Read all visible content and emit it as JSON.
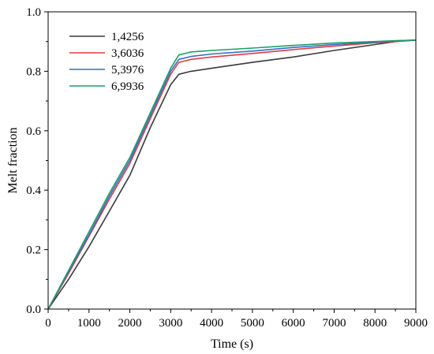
{
  "chart_data": {
    "type": "line",
    "xlabel": "Time (s)",
    "ylabel": "Melt fraction",
    "xlim": [
      0,
      9000
    ],
    "ylim": [
      0,
      1.0
    ],
    "xticks": [
      0,
      1000,
      2000,
      3000,
      4000,
      5000,
      6000,
      7000,
      8000,
      9000
    ],
    "yticks": [
      0.0,
      0.2,
      0.4,
      0.6,
      0.8,
      1.0
    ],
    "ytick_labels": [
      "0.0",
      "0.2",
      "0.4",
      "0.6",
      "0.8",
      "1.0"
    ],
    "grid": false,
    "legend_position": "top-left",
    "series": [
      {
        "name": "1,4256",
        "color": "#3a3a3a",
        "x": [
          0,
          500,
          1000,
          1500,
          2000,
          2500,
          3000,
          3200,
          3500,
          4000,
          5000,
          6000,
          7000,
          8000,
          8500,
          9000
        ],
        "y": [
          0,
          0.1,
          0.21,
          0.33,
          0.45,
          0.61,
          0.755,
          0.79,
          0.8,
          0.81,
          0.83,
          0.848,
          0.87,
          0.89,
          0.9,
          0.905
        ]
      },
      {
        "name": "3,6036",
        "color": "#e8383d",
        "x": [
          0,
          500,
          1000,
          1500,
          2000,
          2500,
          3000,
          3200,
          3500,
          4000,
          5000,
          6000,
          7000,
          8000,
          8500,
          9000
        ],
        "y": [
          0,
          0.12,
          0.245,
          0.37,
          0.49,
          0.64,
          0.79,
          0.83,
          0.84,
          0.848,
          0.86,
          0.873,
          0.885,
          0.896,
          0.9,
          0.905
        ]
      },
      {
        "name": "5,3976",
        "color": "#2f6fd0",
        "x": [
          0,
          500,
          1000,
          1500,
          2000,
          2500,
          3000,
          3200,
          3500,
          4000,
          5000,
          6000,
          7000,
          8000,
          8500,
          9000
        ],
        "y": [
          0,
          0.125,
          0.25,
          0.38,
          0.5,
          0.65,
          0.8,
          0.84,
          0.85,
          0.858,
          0.868,
          0.88,
          0.89,
          0.898,
          0.902,
          0.905
        ]
      },
      {
        "name": "6,9936",
        "color": "#1aa062",
        "x": [
          0,
          500,
          1000,
          1500,
          2000,
          2500,
          3000,
          3200,
          3500,
          4000,
          5000,
          6000,
          7000,
          8000,
          8500,
          9000
        ],
        "y": [
          0,
          0.13,
          0.26,
          0.39,
          0.51,
          0.66,
          0.81,
          0.855,
          0.865,
          0.87,
          0.878,
          0.887,
          0.895,
          0.9,
          0.903,
          0.905
        ]
      }
    ]
  }
}
